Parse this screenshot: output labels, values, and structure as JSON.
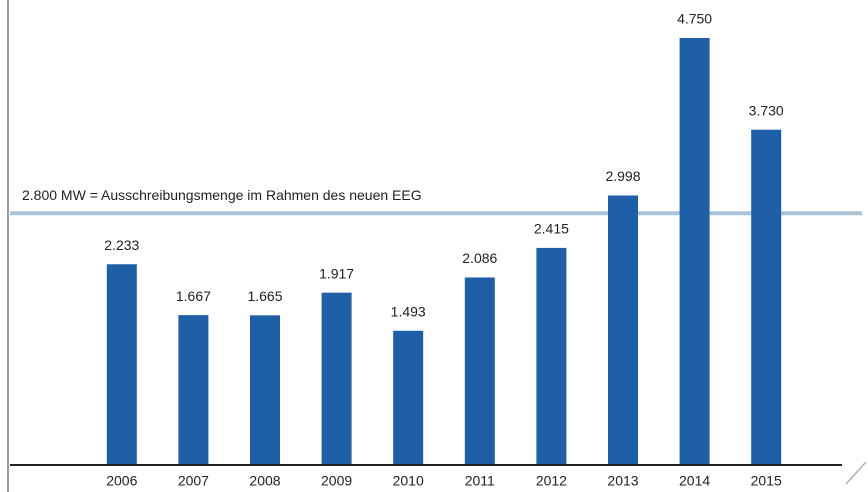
{
  "chart_data": {
    "type": "bar",
    "categories": [
      "2006",
      "2007",
      "2008",
      "2009",
      "2010",
      "2011",
      "2012",
      "2013",
      "2014",
      "2015"
    ],
    "values": [
      2233,
      1667,
      1665,
      1917,
      1493,
      2086,
      2415,
      2998,
      4750,
      3730
    ],
    "value_labels": [
      "2.233",
      "1.667",
      "1.665",
      "1.917",
      "1.493",
      "2.086",
      "2.415",
      "2.998",
      "4.750",
      "3.730"
    ],
    "color": "#1f5fa8",
    "ylim": [
      0,
      5000
    ],
    "reference_line": {
      "value": 2800,
      "label": "2.800 MW = Ausschreibungsmenge im Rahmen des neuen EEG",
      "color": "#a9c4d8"
    }
  }
}
